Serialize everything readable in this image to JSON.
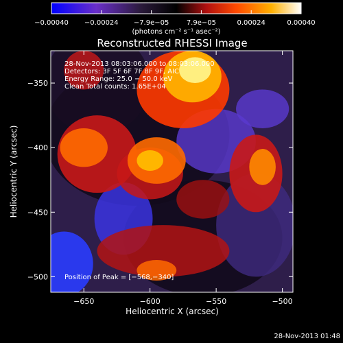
{
  "chart_data": {
    "type": "heatmap",
    "title": "Reconstructed RHESSI Image",
    "xlabel": "Heliocentric X (arcsec)",
    "ylabel": "Heliocentric Y (arcsec)",
    "xlim": [
      -675,
      -492
    ],
    "ylim": [
      -512,
      -325
    ],
    "x_ticks": [
      {
        "value": -650,
        "label": "−650"
      },
      {
        "value": -600,
        "label": "−600"
      },
      {
        "value": -550,
        "label": "−550"
      },
      {
        "value": -500,
        "label": "−500"
      }
    ],
    "y_ticks": [
      {
        "value": -350,
        "label": "−350"
      },
      {
        "value": -400,
        "label": "−400"
      },
      {
        "value": -450,
        "label": "−450"
      },
      {
        "value": -500,
        "label": "−500"
      }
    ],
    "colorbar": {
      "range": [
        -0.0004,
        0.0004
      ],
      "tick_labels": [
        "−0.00040",
        "−0.00024",
        "−7.9e−05",
        "7.9e−05",
        "0.00024",
        "0.00040"
      ],
      "unit_label": "(photons cm⁻² s⁻¹ asec⁻²)",
      "colormap": [
        "#0000ff",
        "#6a2fc9",
        "#2a1a3a",
        "#000000",
        "#b01010",
        "#ff4a00",
        "#ffb000",
        "#ffffff"
      ]
    },
    "peak": {
      "x": -568,
      "y": -340
    },
    "annotations": {
      "time_range": "28-Nov-2013 08:03:06.000 to 08:03:06.000",
      "detectors": "Detectors: 3F 5F 6F 7F 8F 9F, AIC",
      "energy": "Energy Range: 25.0 − 50.0 keV",
      "clean": "Clean     Total counts: 1.65E+04",
      "peak_text": "Position of Peak = [−568,−340]"
    },
    "timestamp": "28-Nov-2013 01:48"
  }
}
